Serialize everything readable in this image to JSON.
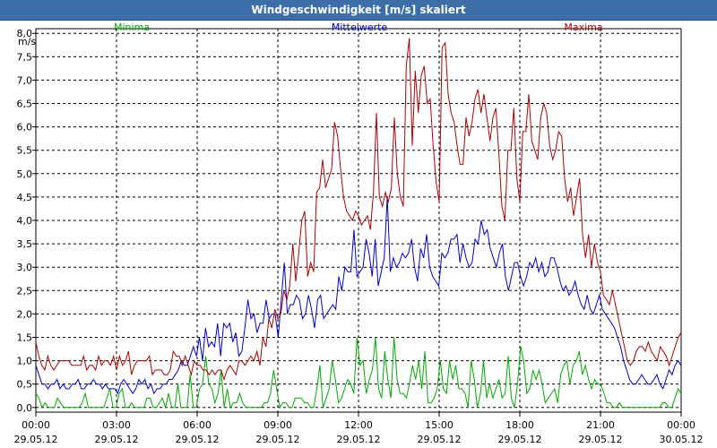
{
  "chart_data": {
    "type": "line",
    "title": "Windgeschwindigkeit [m/s] skaliert",
    "ylabel": "m/s",
    "xlabel": "",
    "ylim": [
      -0.1,
      8.1
    ],
    "yticks": [
      "0,0",
      "0,5",
      "1,0",
      "1,5",
      "2,0",
      "2,5",
      "3,0",
      "3,5",
      "4,0",
      "4,5",
      "5,0",
      "5,5",
      "6,0",
      "6,5",
      "7,0",
      "7,5",
      "8,0"
    ],
    "xlim_hours": [
      0,
      24
    ],
    "x_ticks": [
      {
        "time": "00:00",
        "date": "29.05.12"
      },
      {
        "time": "03:00",
        "date": "29.05.12"
      },
      {
        "time": "06:00",
        "date": "29.05.12"
      },
      {
        "time": "09:00",
        "date": "29.05.12"
      },
      {
        "time": "12:00",
        "date": "29.05.12"
      },
      {
        "time": "15:00",
        "date": "29.05.12"
      },
      {
        "time": "18:00",
        "date": "29.05.12"
      },
      {
        "time": "21:00",
        "date": "29.05.12"
      },
      {
        "time": "00:00",
        "date": "30.05.12"
      }
    ],
    "grid": true,
    "series": [
      {
        "name": "Minima",
        "color": "#00aa00",
        "values": [
          0.3,
          0.2,
          0.0,
          0.1,
          0.0,
          0.0,
          0.0,
          0.2,
          0.1,
          0.0,
          0.0,
          0.0,
          0.0,
          0.0,
          0.0,
          0.1,
          0.3,
          0.0,
          0.0,
          0.0,
          0.0,
          0.0,
          0.0,
          0.2,
          0.4,
          0.0,
          0.0,
          0.3,
          0.4,
          0.0,
          0.0,
          0.1,
          0.0,
          0.0,
          0.0,
          0.0,
          0.2,
          0.2,
          0.0,
          0.0,
          0.1,
          0.2,
          0.0,
          0.3,
          0.0,
          0.0,
          0.5,
          0.0,
          0.0,
          0.0,
          0.7,
          0.0,
          0.0,
          0.4,
          0.5,
          1.1,
          0.5,
          0.4,
          0.1,
          0.3,
          0.8,
          0.0,
          0.4,
          0.0,
          0.1,
          0.1,
          0.3,
          0.1,
          0.0,
          0.0,
          0.0,
          0.0,
          0.0,
          0.0,
          0.1,
          0.1,
          0.3,
          0.8,
          0.4,
          0.0,
          0.1,
          0.1,
          0.0,
          0.0,
          0.2,
          0.2,
          0.2,
          0.1,
          0.1,
          0.0,
          0.0,
          0.4,
          0.9,
          0.0,
          0.2,
          0.4,
          1.0,
          0.6,
          0.1,
          0.2,
          0.4,
          0.6,
          0.5,
          0.3,
          1.5,
          0.9,
          1.0,
          0.3,
          0.6,
          0.8,
          1.5,
          0.4,
          0.2,
          1.2,
          0.6,
          0.2,
          1.5,
          0.6,
          0.3,
          0.3,
          0.2,
          0.5,
          0.9,
          0.6,
          1.0,
          0.4,
          1.2,
          0.1,
          0.1,
          0.2,
          0.4,
          1.0,
          0.4,
          0.3,
          1.0,
          0.6,
          0.9,
          0.4,
          0.4,
          0.3,
          0.0,
          1.0,
          0.6,
          0.0,
          0.3,
          1.0,
          0.2,
          0.5,
          0.2,
          0.4,
          0.6,
          0.2,
          0.3,
          1.1,
          0.2,
          0.0,
          0.5,
          1.3,
          1.0,
          0.3,
          0.4,
          0.8,
          0.6,
          0.8,
          0.5,
          0.1,
          0.2,
          0.3,
          0.4,
          0.1,
          0.7,
          0.9,
          1.0,
          0.5,
          0.9,
          1.0,
          1.2,
          0.7,
          0.9,
          0.6,
          0.4,
          0.6,
          0.5,
          0.5,
          0.3,
          0.1,
          0.1,
          0.0,
          0.0,
          0.1,
          0.0,
          0.0,
          0.0,
          0.0,
          0.0,
          0.0,
          0.0,
          0.0,
          0.0,
          0.0,
          0.0,
          0.0,
          0.0,
          0.1,
          0.1,
          0.0,
          0.0,
          0.2,
          0.4,
          0.3
        ]
      },
      {
        "name": "Mittelwerte",
        "color": "#0000cc",
        "values": [
          0.9,
          0.7,
          0.5,
          0.5,
          0.4,
          0.5,
          0.5,
          0.6,
          0.4,
          0.5,
          0.4,
          0.4,
          0.5,
          0.5,
          0.6,
          0.4,
          0.4,
          0.5,
          0.5,
          0.6,
          0.5,
          0.5,
          0.4,
          0.5,
          0.4,
          0.4,
          0.4,
          0.3,
          0.5,
          0.6,
          0.5,
          0.4,
          0.3,
          0.4,
          0.6,
          0.5,
          0.6,
          0.4,
          0.5,
          0.3,
          0.4,
          0.4,
          0.5,
          0.5,
          0.6,
          0.6,
          0.7,
          0.8,
          1.0,
          0.9,
          0.9,
          1.1,
          1.3,
          1.1,
          1.5,
          1.0,
          1.7,
          1.3,
          1.4,
          1.3,
          1.8,
          1.1,
          1.8,
          1.7,
          1.8,
          1.4,
          1.6,
          1.1,
          1.2,
          1.7,
          2.3,
          1.9,
          2.0,
          1.6,
          1.8,
          1.8,
          2.3,
          1.9,
          2.0,
          2.0,
          1.5,
          2.3,
          3.1,
          2.0,
          2.2,
          2.2,
          2.4,
          2.3,
          1.9,
          2.0,
          2.4,
          2.1,
          1.7,
          2.3,
          2.4,
          1.9,
          2.0,
          2.1,
          2.2,
          2.1,
          2.8,
          2.5,
          3.0,
          2.9,
          2.9,
          3.8,
          2.8,
          2.9,
          3.0,
          3.6,
          3.3,
          2.8,
          3.6,
          2.6,
          2.9,
          3.2,
          4.5,
          2.9,
          3.2,
          3.0,
          3.1,
          3.3,
          3.2,
          3.3,
          3.6,
          3.0,
          2.7,
          3.4,
          3.2,
          3.7,
          3.0,
          2.8,
          2.7,
          2.6,
          3.3,
          3.2,
          3.3,
          3.6,
          3.6,
          3.7,
          3.1,
          3.5,
          3.2,
          3.0,
          3.1,
          3.6,
          3.5,
          4.0,
          3.7,
          3.8,
          3.4,
          3.2,
          3.0,
          3.3,
          3.5,
          2.8,
          2.5,
          2.8,
          3.1,
          3.1,
          2.8,
          2.6,
          2.8,
          3.1,
          3.0,
          3.2,
          2.9,
          3.1,
          2.8,
          2.9,
          3.2,
          3.2,
          3.0,
          2.7,
          2.5,
          2.6,
          2.4,
          2.5,
          2.7,
          2.4,
          2.2,
          2.1,
          2.4,
          2.1,
          2.0,
          2.2,
          2.4,
          2.1,
          2.0,
          1.9,
          1.8,
          1.7,
          1.5,
          1.3,
          1.0,
          0.8,
          0.6,
          0.5,
          0.5,
          0.6,
          0.7,
          0.6,
          0.5,
          0.5,
          0.6,
          0.7,
          0.5,
          0.4,
          0.6,
          0.8,
          0.7,
          0.9,
          1.0,
          0.9
        ]
      },
      {
        "name": "Maxima",
        "color": "#aa0000",
        "values": [
          1.4,
          1.1,
          0.9,
          0.8,
          1.1,
          0.9,
          0.8,
          0.9,
          1.0,
          1.0,
          1.0,
          1.0,
          0.9,
          0.9,
          0.9,
          0.9,
          1.1,
          0.8,
          0.9,
          0.9,
          0.8,
          1.1,
          0.9,
          1.0,
          1.0,
          0.9,
          1.1,
          0.8,
          1.1,
          0.9,
          1.0,
          1.2,
          0.7,
          0.9,
          1.0,
          1.0,
          1.0,
          1.0,
          1.1,
          0.7,
          0.8,
          0.8,
          0.8,
          0.7,
          0.7,
          0.8,
          1.2,
          1.1,
          1.1,
          0.9,
          1.1,
          0.9,
          0.7,
          1.0,
          0.9,
          0.9,
          0.8,
          0.8,
          0.7,
          0.8,
          0.7,
          0.8,
          0.8,
          0.6,
          0.8,
          0.9,
          0.8,
          0.7,
          1.0,
          1.0,
          0.9,
          1.0,
          1.1,
          1.0,
          1.2,
          0.9,
          1.5,
          1.3,
          1.9,
          1.7,
          2.1,
          1.9,
          2.0,
          2.5,
          2.3,
          2.6,
          3.5,
          2.7,
          3.3,
          4.0,
          4.2,
          2.8,
          3.1,
          2.9,
          4.6,
          4.7,
          5.3,
          4.7,
          4.9,
          5.1,
          6.1,
          5.8,
          5.1,
          4.5,
          4.2,
          4.1,
          4.0,
          4.2,
          4.1,
          3.9,
          4.0,
          4.1,
          3.8,
          4.6,
          6.3,
          4.5,
          4.3,
          4.6,
          4.4,
          4.7,
          6.2,
          5.0,
          4.5,
          4.3,
          7.3,
          7.9,
          5.6,
          7.2,
          6.3,
          7.1,
          7.3,
          6.5,
          6.6,
          5.6,
          4.8,
          4.4,
          7.7,
          7.8,
          6.7,
          6.3,
          6.1,
          5.6,
          5.2,
          5.2,
          6.2,
          5.8,
          6.1,
          6.6,
          6.8,
          6.3,
          6.7,
          6.2,
          5.7,
          6.2,
          6.4,
          5.4,
          4.3,
          4.0,
          5.5,
          5.5,
          6.4,
          4.9,
          4.4,
          5.9,
          5.9,
          6.7,
          5.7,
          5.5,
          5.3,
          6.2,
          6.5,
          6.3,
          5.6,
          5.3,
          5.5,
          5.9,
          5.8,
          4.9,
          4.4,
          4.7,
          4.1,
          4.5,
          4.9,
          3.7,
          3.2,
          3.7,
          3.0,
          3.5,
          3.1,
          2.9,
          2.4,
          2.3,
          2.2,
          2.5,
          2.2,
          1.9,
          1.6,
          1.3,
          1.0,
          0.9,
          1.0,
          1.2,
          1.3,
          1.3,
          1.2,
          1.4,
          1.2,
          1.1,
          1.0,
          1.3,
          1.2,
          1.1,
          0.9,
          1.1,
          1.3,
          1.5,
          1.6
        ]
      }
    ]
  }
}
